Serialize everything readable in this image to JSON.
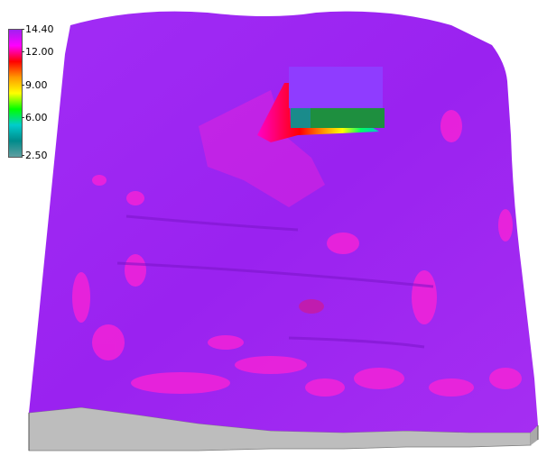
{
  "legend": {
    "max_label": "14.40",
    "tick_12": "12.00",
    "tick_9": "9.00",
    "tick_6": "6.00",
    "min_label": "2.50",
    "gradient_stops": [
      "#a020f0",
      "#ff00ff",
      "#ff0000",
      "#ff9900",
      "#ffff00",
      "#00ff00",
      "#00cccc",
      "#008b8b",
      "#5f9ea0"
    ]
  },
  "surface": {
    "base_color": "#9a22f0",
    "highlight_color": "#ff1fd1",
    "side_color": "#bdbdbd",
    "block_top_color": "#8f3cff",
    "block_side_color": "#1e8f3f"
  }
}
